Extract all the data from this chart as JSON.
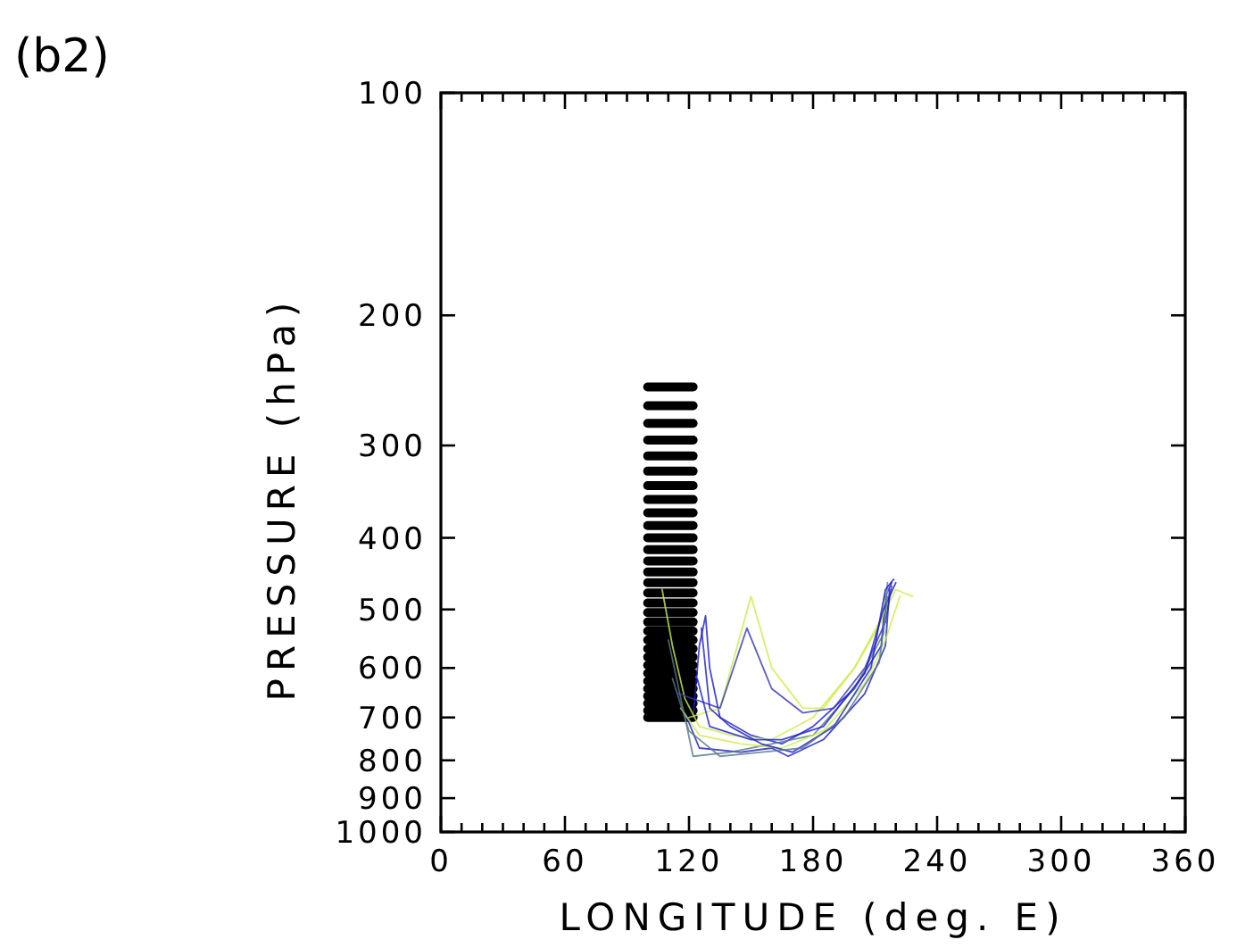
{
  "chart_data": {
    "type": "line",
    "title": "(b2)",
    "xlabel": "LONGITUDE (deg. E)",
    "ylabel": "PRESSURE (hPa)",
    "log": "y",
    "grid": false,
    "marker": "none",
    "line_style": "solid",
    "xlim": [
      0,
      360
    ],
    "ylim": [
      1000,
      100
    ],
    "xticks": [
      0,
      {
        "value": 10,
        "label": null
      },
      {
        "value": 20,
        "label": null
      },
      {
        "value": 30,
        "label": null
      },
      {
        "value": 40,
        "label": null
      },
      {
        "value": 50,
        "label": null
      },
      60,
      {
        "value": 70,
        "label": null
      },
      {
        "value": 80,
        "label": null
      },
      {
        "value": 90,
        "label": null
      },
      {
        "value": 100,
        "label": null
      },
      {
        "value": 110,
        "label": null
      },
      120,
      {
        "value": 130,
        "label": null
      },
      {
        "value": 140,
        "label": null
      },
      {
        "value": 150,
        "label": null
      },
      {
        "value": 160,
        "label": null
      },
      {
        "value": 170,
        "label": null
      },
      180,
      {
        "value": 190,
        "label": null
      },
      {
        "value": 200,
        "label": null
      },
      {
        "value": 210,
        "label": null
      },
      {
        "value": 220,
        "label": null
      },
      {
        "value": 230,
        "label": null
      },
      240,
      {
        "value": 250,
        "label": null
      },
      {
        "value": 260,
        "label": null
      },
      {
        "value": 270,
        "label": null
      },
      {
        "value": 280,
        "label": null
      },
      {
        "value": 290,
        "label": null
      },
      300,
      {
        "value": 310,
        "label": null
      },
      {
        "value": 320,
        "label": null
      },
      {
        "value": 330,
        "label": null
      },
      {
        "value": 340,
        "label": null
      },
      {
        "value": 350,
        "label": null
      },
      360
    ],
    "yticks": [
      100,
      200,
      300,
      400,
      500,
      600,
      700,
      800,
      900,
      1000
    ],
    "series": [
      {
        "x": [
          100,
          122
        ],
        "values": [
          250,
          250
        ],
        "color": "#000000"
      },
      {
        "x": [
          100,
          122
        ],
        "values": [
          265,
          265
        ],
        "color": "#000000"
      },
      {
        "x": [
          100,
          122
        ],
        "values": [
          280,
          280
        ],
        "color": "#000000"
      },
      {
        "x": [
          100,
          122
        ],
        "values": [
          295,
          295
        ],
        "color": "#000000"
      },
      {
        "x": [
          100,
          122
        ],
        "values": [
          310,
          310
        ],
        "color": "#000000"
      },
      {
        "x": [
          100,
          122
        ],
        "values": [
          325,
          325
        ],
        "color": "#000000"
      },
      {
        "x": [
          100,
          122
        ],
        "values": [
          340,
          340
        ],
        "color": "#000000"
      },
      {
        "x": [
          100,
          122
        ],
        "values": [
          355,
          355
        ],
        "color": "#000000"
      },
      {
        "x": [
          100,
          122
        ],
        "values": [
          370,
          370
        ],
        "color": "#000000"
      },
      {
        "x": [
          100,
          122
        ],
        "values": [
          385,
          385
        ],
        "color": "#000000"
      },
      {
        "x": [
          100,
          122
        ],
        "values": [
          400,
          400
        ],
        "color": "#000000"
      },
      {
        "x": [
          100,
          122
        ],
        "values": [
          415,
          415
        ],
        "color": "#000000"
      },
      {
        "x": [
          100,
          122
        ],
        "values": [
          430,
          430
        ],
        "color": "#000000"
      },
      {
        "x": [
          100,
          122
        ],
        "values": [
          445,
          445
        ],
        "color": "#000000"
      },
      {
        "x": [
          100,
          122
        ],
        "values": [
          460,
          460
        ],
        "color": "#000000"
      },
      {
        "x": [
          100,
          122
        ],
        "values": [
          475,
          475
        ],
        "color": "#000000"
      },
      {
        "x": [
          100,
          122
        ],
        "values": [
          490,
          490
        ],
        "color": "#000000"
      },
      {
        "x": [
          100,
          122
        ],
        "values": [
          505,
          505
        ],
        "color": "#000000"
      },
      {
        "x": [
          100,
          122
        ],
        "values": [
          520,
          520
        ],
        "color": "#000000"
      },
      {
        "x": [
          100,
          122
        ],
        "values": [
          535,
          535
        ],
        "color": "#000000"
      },
      {
        "x": [
          100,
          122
        ],
        "values": [
          550,
          550
        ],
        "color": "#000000"
      },
      {
        "x": [
          100,
          122
        ],
        "values": [
          565,
          565
        ],
        "color": "#000000"
      },
      {
        "x": [
          100,
          122
        ],
        "values": [
          580,
          580
        ],
        "color": "#000000"
      },
      {
        "x": [
          100,
          122
        ],
        "values": [
          595,
          595
        ],
        "color": "#000000"
      },
      {
        "x": [
          100,
          122
        ],
        "values": [
          610,
          610
        ],
        "color": "#000000"
      },
      {
        "x": [
          100,
          122
        ],
        "values": [
          625,
          625
        ],
        "color": "#000000"
      },
      {
        "x": [
          100,
          122
        ],
        "values": [
          640,
          640
        ],
        "color": "#000000"
      },
      {
        "x": [
          100,
          122
        ],
        "values": [
          655,
          655
        ],
        "color": "#000000"
      },
      {
        "x": [
          100,
          122
        ],
        "values": [
          670,
          670
        ],
        "color": "#000000"
      },
      {
        "x": [
          100,
          122
        ],
        "values": [
          685,
          685
        ],
        "color": "#000000"
      },
      {
        "x": [
          100,
          122
        ],
        "values": [
          700,
          700
        ],
        "color": "#000000"
      },
      {
        "x": [
          122,
          125,
          128,
          130,
          135,
          150,
          165,
          180,
          200,
          213,
          215,
          218
        ],
        "values": [
          700,
          560,
          510,
          600,
          700,
          740,
          760,
          720,
          640,
          560,
          480,
          460
        ],
        "color": "#1a1acc"
      },
      {
        "x": [
          107,
          112,
          118,
          125,
          140,
          160,
          180,
          200,
          212,
          220,
          228
        ],
        "values": [
          470,
          560,
          660,
          720,
          740,
          750,
          700,
          600,
          520,
          470,
          480
        ],
        "color": "#ccee44"
      },
      {
        "x": [
          120,
          135,
          150,
          160,
          175,
          185,
          200,
          213,
          216
        ],
        "values": [
          700,
          680,
          480,
          600,
          680,
          680,
          600,
          520,
          470
        ],
        "color": "#ccee44"
      },
      {
        "x": [
          115,
          135,
          148,
          160,
          175,
          190,
          205,
          215,
          218
        ],
        "values": [
          650,
          680,
          530,
          640,
          690,
          680,
          600,
          520,
          465
        ],
        "color": "#3333bb"
      },
      {
        "x": [
          118,
          125,
          145,
          160,
          168,
          185,
          205,
          215,
          217
        ],
        "values": [
          690,
          770,
          780,
          770,
          790,
          750,
          650,
          560,
          470
        ],
        "color": "#1a1acc"
      },
      {
        "x": [
          110,
          118,
          122,
          140,
          160,
          180,
          200,
          214,
          216
        ],
        "values": [
          550,
          700,
          790,
          780,
          760,
          740,
          640,
          540,
          460
        ],
        "color": "#557788"
      },
      {
        "x": [
          124,
          130,
          150,
          165,
          185,
          205,
          214,
          220
        ],
        "values": [
          620,
          720,
          750,
          750,
          720,
          610,
          500,
          460
        ],
        "color": "#1a1acc"
      },
      {
        "x": [
          116,
          125,
          145,
          165,
          185,
          205,
          215,
          222
        ],
        "values": [
          680,
          740,
          760,
          770,
          730,
          630,
          550,
          480
        ],
        "color": "#ccee44"
      },
      {
        "x": [
          126,
          130,
          140,
          155,
          170,
          190,
          208,
          215,
          219
        ],
        "values": [
          530,
          680,
          720,
          760,
          780,
          720,
          600,
          470,
          455
        ],
        "color": "#1a1acc"
      },
      {
        "x": [
          112,
          120,
          135,
          155,
          175,
          195,
          212,
          216
        ],
        "values": [
          620,
          730,
          790,
          780,
          770,
          700,
          590,
          480
        ],
        "color": "#557788"
      }
    ]
  }
}
